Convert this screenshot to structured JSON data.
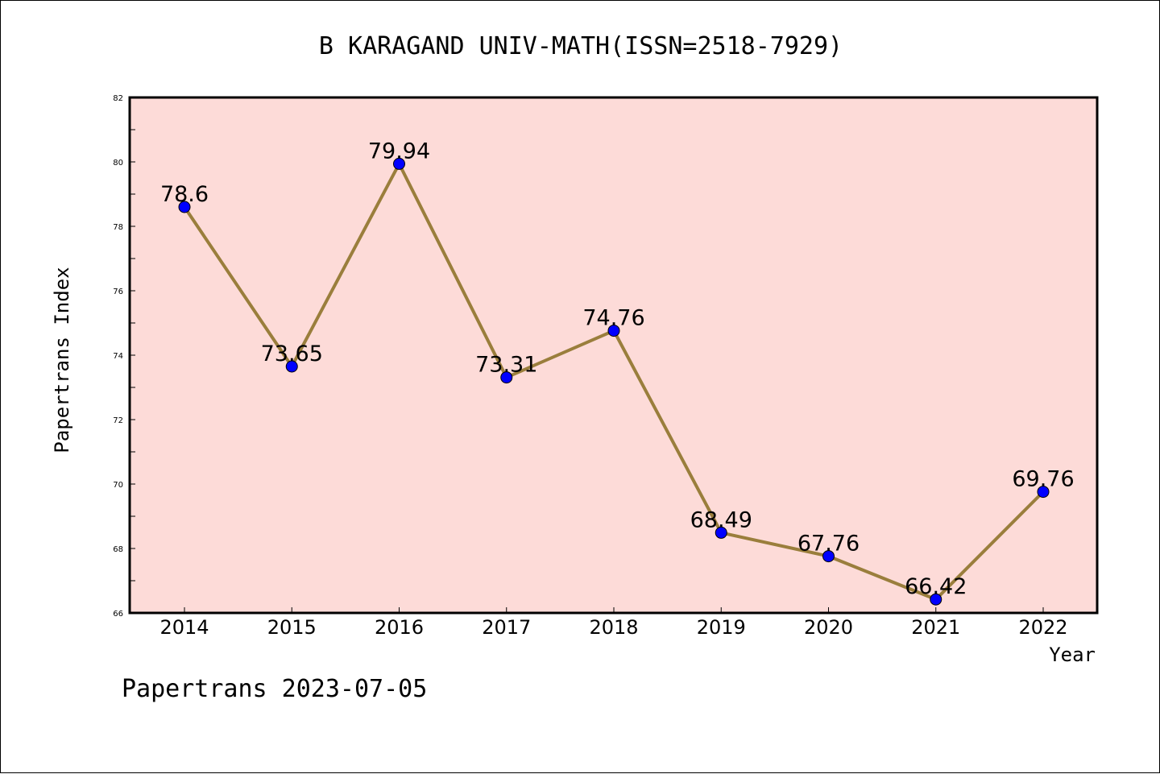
{
  "chart_data": {
    "type": "line",
    "title": "B KARAGAND UNIV-MATH(ISSN=2518-7929)",
    "xlabel": "Year",
    "ylabel": "Papertrans Index",
    "categories": [
      "2014",
      "2015",
      "2016",
      "2017",
      "2018",
      "2019",
      "2020",
      "2021",
      "2022"
    ],
    "series": [
      {
        "values": [
          78.6,
          73.65,
          79.94,
          73.31,
          74.76,
          68.49,
          67.76,
          66.42,
          69.76
        ],
        "data_labels": [
          "78.6",
          "73.65",
          "79.94",
          "73.31",
          "74.76",
          "68.49",
          "67.76",
          "66.42",
          "69.76"
        ]
      }
    ],
    "ylim": [
      66,
      82
    ],
    "yticks": [
      66,
      68,
      70,
      72,
      74,
      76,
      78,
      80,
      82
    ],
    "grid": false,
    "legend": "none",
    "colors": {
      "plot_background": "#fddbd8",
      "line": "#9a7e3c",
      "marker": "#0000ff"
    }
  },
  "footer": "Papertrans 2023-07-05"
}
